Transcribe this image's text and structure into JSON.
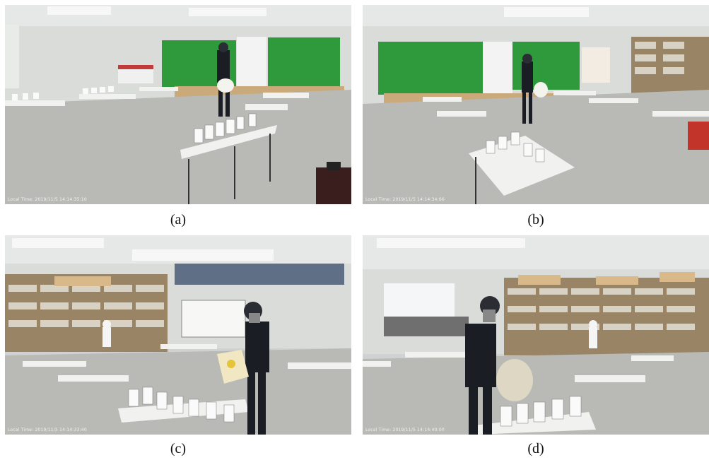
{
  "figure": {
    "panels": [
      {
        "id": "a",
        "caption": "(a)",
        "timestamp": "Local Time: 2019/11/5 14:14:35:10"
      },
      {
        "id": "b",
        "caption": "(b)",
        "timestamp": "Local Time: 2019/11/5 14:14:34:66"
      },
      {
        "id": "c",
        "caption": "(c)",
        "timestamp": "Local Time: 2019/11/5 14:14:33:40"
      },
      {
        "id": "d",
        "caption": "(d)",
        "timestamp": "Local Time: 2019/11/5 14:14:40:00"
      }
    ]
  },
  "colors": {
    "green_screen": "#2f9a3b",
    "floor": "#b9bab6",
    "wall": "#d9dcd9",
    "ceiling": "#e6e8e8",
    "table": "#f1f1ef",
    "shelf": "#9a8466",
    "person": "#1a1d24"
  }
}
